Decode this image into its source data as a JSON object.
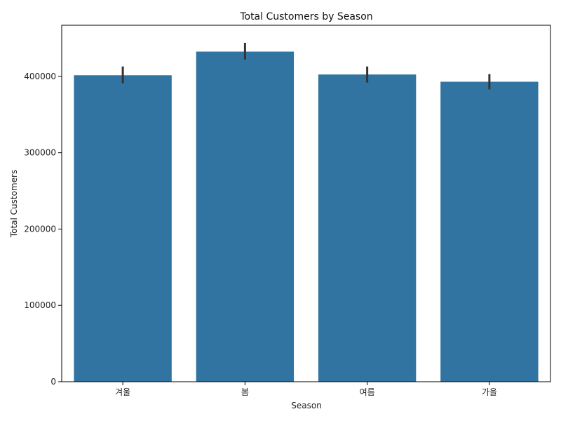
{
  "chart_data": {
    "type": "bar",
    "title": "Total Customers by Season",
    "xlabel": "Season",
    "ylabel": "Total Customers",
    "categories": [
      "겨울",
      "봄",
      "여름",
      "가을"
    ],
    "values": [
      401500,
      432500,
      402500,
      393000
    ],
    "error_low": [
      391000,
      422000,
      392000,
      383000
    ],
    "error_high": [
      413000,
      444000,
      413000,
      403000
    ],
    "ylim": [
      0,
      467000
    ],
    "yticks": [
      0,
      100000,
      200000,
      300000,
      400000
    ],
    "ytick_labels": [
      "0",
      "100000",
      "200000",
      "300000",
      "400000"
    ],
    "grid": false,
    "colors": {
      "bar": "#3274a1",
      "errorbar": "#333333",
      "axis": "#000000"
    }
  }
}
